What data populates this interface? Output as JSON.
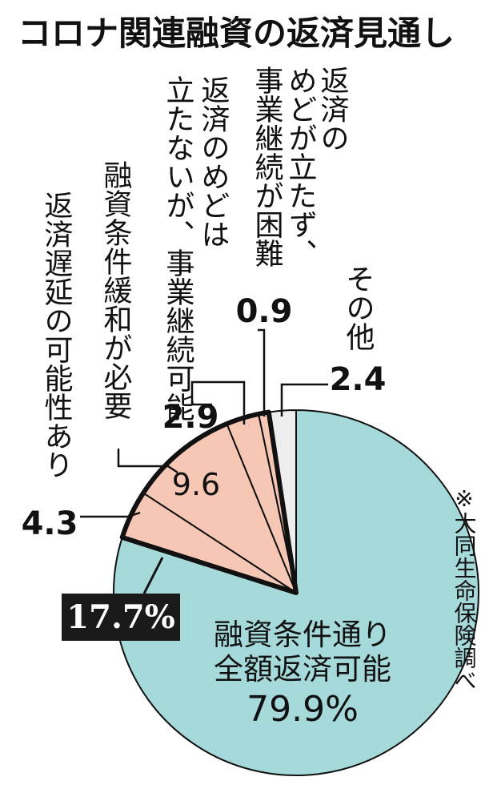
{
  "chart_data": {
    "type": "pie",
    "title": "コロナ関連融資の返済見通し",
    "source_note": "※大同生命保険調べ",
    "slices": [
      {
        "label": "融資条件通り全額返済可能",
        "label_lines": [
          "融資条件通り",
          "全額返済可能"
        ],
        "value": 79.9,
        "value_text": "79.9%",
        "color": "#a6d9da"
      },
      {
        "label": "返済遅延の可能性あり",
        "value": 4.3,
        "value_text": "4.3",
        "color": "#f6c7b5"
      },
      {
        "label": "融資条件緩和が必要",
        "value": 9.6,
        "value_text": "9.6",
        "color": "#f6c7b5"
      },
      {
        "label": "返済のめどは立たないが、事業継続可能",
        "label_cols": [
          "返済のめどは",
          "立たないが、事業継続可能"
        ],
        "value": 2.9,
        "value_text": "2.9",
        "color": "#f6c7b5"
      },
      {
        "label": "返済のめどが立たず、事業継続が困難",
        "label_cols": [
          "返済の",
          "めどが立たず、",
          "事業継続が困難"
        ],
        "value": 0.9,
        "value_text": "0.9",
        "color": "#f6c7b5"
      },
      {
        "label": "その他",
        "value": 2.4,
        "value_text": "2.4",
        "color": "#eeeeee"
      }
    ],
    "group_total": {
      "value": 17.7,
      "value_text": "17.7%"
    }
  }
}
